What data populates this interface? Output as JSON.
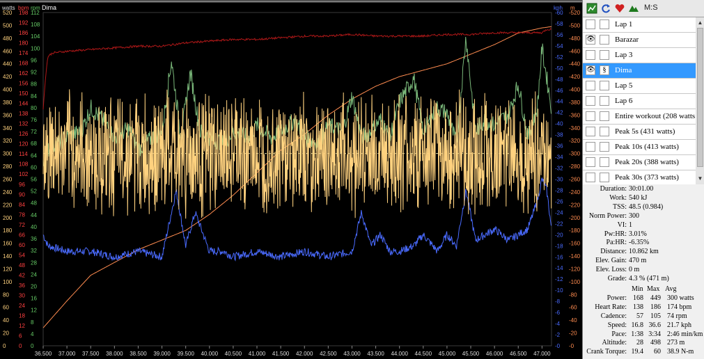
{
  "chart_data": {
    "type": "line",
    "title": "Dima",
    "x_range": [
      36.5,
      47.2
    ],
    "x_ticks": [
      "36.500",
      "37.000",
      "37.500",
      "38.000",
      "38.500",
      "39.000",
      "39.500",
      "40.000",
      "40.500",
      "41.000",
      "41.500",
      "42.000",
      "42.500",
      "43.000",
      "43.500",
      "44.000",
      "44.500",
      "45.000",
      "45.500",
      "46.000",
      "46.500",
      "47.000"
    ],
    "axes": {
      "watts": {
        "unit": "watts",
        "color": "#ffd27f",
        "ticks": [
          "0",
          "20",
          "40",
          "60",
          "80",
          "100",
          "120",
          "140",
          "160",
          "180",
          "200",
          "220",
          "240",
          "260",
          "280",
          "300",
          "320",
          "340",
          "360",
          "380",
          "400",
          "420",
          "440",
          "460",
          "480",
          "500",
          "520"
        ]
      },
      "bpm": {
        "unit": "bpm",
        "color": "#ff4040",
        "ticks": [
          "0",
          "6",
          "12",
          "18",
          "24",
          "30",
          "36",
          "42",
          "48",
          "54",
          "60",
          "66",
          "72",
          "78",
          "84",
          "90",
          "96",
          "102",
          "108",
          "114",
          "120",
          "126",
          "132",
          "138",
          "144",
          "150",
          "156",
          "162",
          "168",
          "174",
          "180",
          "186",
          "192",
          "198"
        ]
      },
      "rpm": {
        "unit": "rpm",
        "color": "#66cc66",
        "ticks": [
          "0",
          "4",
          "8",
          "12",
          "16",
          "20",
          "24",
          "28",
          "32",
          "36",
          "40",
          "44",
          "48",
          "52",
          "56",
          "60",
          "64",
          "68",
          "72",
          "76",
          "80",
          "84",
          "88",
          "92",
          "96",
          "100",
          "104",
          "108",
          "112"
        ]
      },
      "kph": {
        "unit": "kph",
        "color": "#4a6bff",
        "ticks": [
          "0",
          "2",
          "4",
          "6",
          "8",
          "10",
          "12",
          "14",
          "16",
          "18",
          "20",
          "22",
          "24",
          "26",
          "28",
          "30",
          "32",
          "34",
          "36",
          "38",
          "40",
          "42",
          "44",
          "46",
          "48",
          "50",
          "52",
          "54",
          "56",
          "58",
          "60"
        ]
      },
      "m": {
        "unit": "m",
        "color": "#ff8c50",
        "ticks": [
          "0",
          "20",
          "40",
          "60",
          "80",
          "100",
          "120",
          "140",
          "160",
          "180",
          "200",
          "220",
          "240",
          "260",
          "280",
          "300",
          "320",
          "340",
          "360",
          "380",
          "400",
          "420",
          "440",
          "460",
          "480",
          "500",
          "520"
        ]
      }
    },
    "series": [
      {
        "name": "Power",
        "unit": "watts",
        "color": "#ffd27f",
        "axis": "watts",
        "mean": 300,
        "min": 168,
        "max": 449
      },
      {
        "name": "Heart Rate",
        "unit": "bpm",
        "color": "#b01818",
        "axis": "bpm",
        "x": [
          36.5,
          36.55,
          36.6,
          36.7,
          37.0,
          37.5,
          38.0,
          38.5,
          39.0,
          39.5,
          40.0,
          40.5,
          41.0,
          41.5,
          42.0,
          42.5,
          43.0,
          43.5,
          44.0,
          44.5,
          45.0,
          45.5,
          46.0,
          46.5,
          47.0,
          47.1,
          47.2
        ],
        "values": [
          140,
          160,
          172,
          174,
          175,
          176,
          177,
          178,
          178,
          180,
          181,
          182,
          182,
          183,
          184,
          184,
          185,
          184,
          184,
          184,
          185,
          185,
          186,
          186,
          186,
          188,
          188
        ]
      },
      {
        "name": "Cadence",
        "unit": "rpm",
        "color": "#7ab87a",
        "axis": "rpm",
        "x": [
          36.5,
          36.6,
          37.0,
          37.3,
          37.5,
          37.8,
          38.0,
          38.3,
          38.5,
          38.8,
          39.0,
          39.2,
          39.4,
          39.6,
          39.8,
          40.0,
          40.3,
          40.5,
          40.8,
          41.0,
          41.3,
          41.5,
          41.8,
          42.0,
          42.3,
          42.5,
          42.8,
          43.0,
          43.2,
          43.4,
          43.6,
          43.8,
          44.0,
          44.3,
          44.5,
          44.8,
          45.0,
          45.2,
          45.4,
          45.6,
          45.8,
          46.0,
          46.3,
          46.5,
          46.7,
          46.9,
          47.0,
          47.1,
          47.2
        ],
        "values": [
          60,
          66,
          70,
          72,
          80,
          75,
          70,
          73,
          66,
          70,
          72,
          96,
          70,
          92,
          72,
          70,
          68,
          72,
          70,
          74,
          70,
          72,
          76,
          70,
          68,
          74,
          72,
          84,
          70,
          72,
          76,
          70,
          82,
          90,
          72,
          80,
          78,
          68,
          104,
          72,
          76,
          74,
          78,
          88,
          70,
          80,
          100,
          90,
          80
        ]
      },
      {
        "name": "Speed",
        "unit": "kph",
        "color": "#4a6bff",
        "axis": "kph",
        "x": [
          36.5,
          36.6,
          37.0,
          37.5,
          38.0,
          38.5,
          39.0,
          39.3,
          39.5,
          39.7,
          40.0,
          40.3,
          40.5,
          41.0,
          41.5,
          42.0,
          42.5,
          43.0,
          43.2,
          43.4,
          43.6,
          43.8,
          44.0,
          44.3,
          44.5,
          44.8,
          45.0,
          45.2,
          45.4,
          45.6,
          45.8,
          46.0,
          46.3,
          46.5,
          46.7,
          46.9,
          47.0,
          47.1,
          47.2
        ],
        "values": [
          20,
          18,
          17,
          17,
          16,
          17,
          16,
          28,
          18,
          24,
          17,
          17,
          16,
          17,
          16,
          17,
          16,
          17,
          24,
          18,
          20,
          17,
          17,
          18,
          20,
          17,
          20,
          18,
          28,
          19,
          20,
          21,
          19,
          20,
          21,
          26,
          30,
          28,
          21
        ]
      },
      {
        "name": "Altitude",
        "unit": "m",
        "color": "#ff8c50",
        "axis": "m",
        "x": [
          36.5,
          37.0,
          37.5,
          38.0,
          38.5,
          39.0,
          39.5,
          40.0,
          40.5,
          41.0,
          41.5,
          42.0,
          42.5,
          43.0,
          43.5,
          44.0,
          44.5,
          45.0,
          45.5,
          46.0,
          46.5,
          47.0,
          47.2
        ],
        "values": [
          28,
          70,
          110,
          130,
          150,
          165,
          180,
          205,
          235,
          270,
          305,
          330,
          360,
          385,
          405,
          420,
          430,
          440,
          455,
          470,
          488,
          496,
          498
        ]
      }
    ],
    "reference_lines": [
      {
        "name": "Average power",
        "axis": "watts",
        "value": 300,
        "style": "dashed",
        "color": "#d8d8a0"
      }
    ],
    "grid": false
  },
  "toolbar": {
    "icons": [
      "chart-icon",
      "refresh-icon",
      "heart-icon",
      "mountain-icon"
    ],
    "mode_label": "M:S"
  },
  "laps": [
    {
      "label": "Lap 1",
      "visible": false,
      "rider": false
    },
    {
      "label": "Barazar",
      "visible": true,
      "rider": false
    },
    {
      "label": "Lap 3",
      "visible": false,
      "rider": false
    },
    {
      "label": "Dima",
      "visible": true,
      "rider": true,
      "selected": true
    },
    {
      "label": "Lap 5",
      "visible": false,
      "rider": false
    },
    {
      "label": "Lap 6",
      "visible": false,
      "rider": false
    },
    {
      "label": "Entire workout (208 watts",
      "visible": false,
      "rider": false
    },
    {
      "label": "Peak 5s (431 watts)",
      "visible": false,
      "rider": false
    },
    {
      "label": "Peak 10s (413 watts)",
      "visible": false,
      "rider": false
    },
    {
      "label": "Peak 20s (388 watts)",
      "visible": false,
      "rider": false
    },
    {
      "label": "Peak 30s (373 watts)",
      "visible": false,
      "rider": false
    }
  ],
  "summary": [
    {
      "label": "Duration:",
      "value": "30:01.00"
    },
    {
      "label": "Work:",
      "value": "540 kJ"
    },
    {
      "label": "TSS:",
      "value": "48.5 (0.984)"
    },
    {
      "label": "Norm Power:",
      "value": "300"
    },
    {
      "label": "VI:",
      "value": "1"
    },
    {
      "label": "Pw:HR:",
      "value": "3.01%"
    },
    {
      "label": "Pa:HR:",
      "value": "-6.35%"
    },
    {
      "label": "Distance:",
      "value": "10.862 km"
    },
    {
      "label": "Elev. Gain:",
      "value": "470 m"
    },
    {
      "label": "Elev. Loss:",
      "value": "0 m"
    },
    {
      "label": "Grade:",
      "value": "4.3 % (471 m)"
    }
  ],
  "stats_table": {
    "headers": [
      "Min",
      "Max",
      "Avg"
    ],
    "rows": [
      {
        "label": "Power:",
        "min": "168",
        "max": "449",
        "avg": "300 watts"
      },
      {
        "label": "Heart Rate:",
        "min": "138",
        "max": "186",
        "avg": "174 bpm"
      },
      {
        "label": "Cadence:",
        "min": "57",
        "max": "105",
        "avg": "74 rpm"
      },
      {
        "label": "Speed:",
        "min": "16.8",
        "max": "36.6",
        "avg": "21.7 kph"
      },
      {
        "label": "Pace:",
        "min": "1:38",
        "max": "3:34",
        "avg": "2:46 min/km"
      },
      {
        "label": "Altitude:",
        "min": "28",
        "max": "498",
        "avg": "273 m"
      },
      {
        "label": "Crank Torque:",
        "min": "19.4",
        "max": "60",
        "avg": "38.9 N-m"
      }
    ]
  }
}
